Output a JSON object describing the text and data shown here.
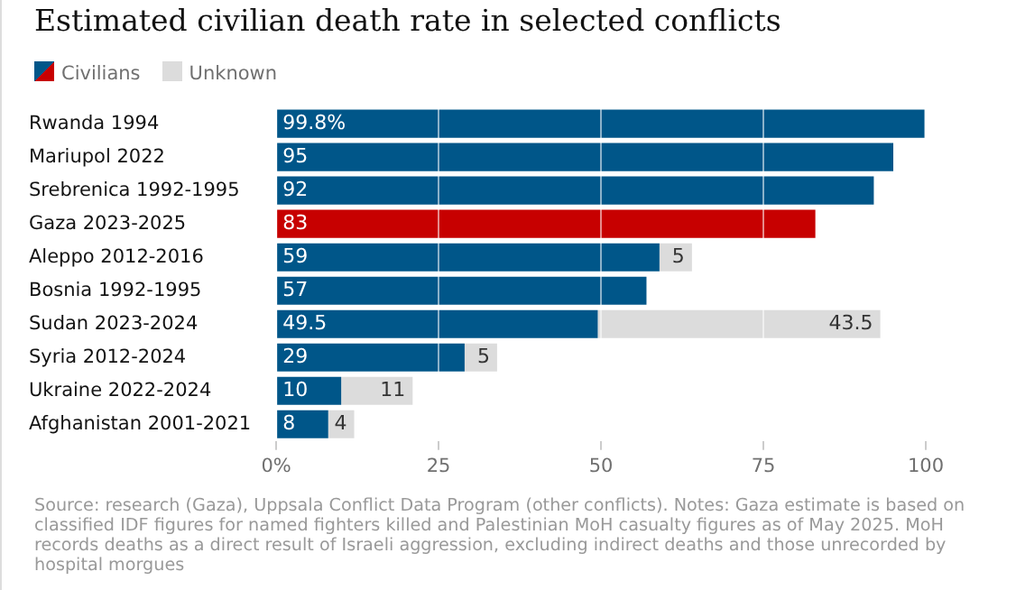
{
  "chart_data": {
    "type": "bar",
    "orientation": "horizontal",
    "stacked": true,
    "title": "Estimated civilian death rate in selected conflicts",
    "categories": [
      "Rwanda 1994",
      "Mariupol 2022",
      "Srebrenica 1992-1995",
      "Gaza 2023-2025",
      "Aleppo 2012-2016",
      "Bosnia 1992-1995",
      "Sudan 2023-2024",
      "Syria 2012-2024",
      "Ukraine 2022-2024",
      "Afghanistan 2001-2021"
    ],
    "series": [
      {
        "name": "Civilians",
        "color": "#005689",
        "colors": [
          "#005689",
          "#005689",
          "#005689",
          "#c70000",
          "#005689",
          "#005689",
          "#005689",
          "#005689",
          "#005689",
          "#005689"
        ],
        "values": [
          99.8,
          95,
          92,
          83,
          59,
          57,
          49.5,
          29,
          10,
          8
        ],
        "value_labels": [
          "99.8%",
          "95",
          "92",
          "83",
          "59",
          "57",
          "49.5",
          "29",
          "10",
          "8"
        ]
      },
      {
        "name": "Unknown",
        "color": "#dcdcdc",
        "values": [
          null,
          null,
          null,
          null,
          5,
          null,
          43.5,
          5,
          11,
          4
        ],
        "value_labels": [
          null,
          null,
          null,
          null,
          "5",
          null,
          "43.5",
          "5",
          "11",
          "4"
        ]
      }
    ],
    "xlim": [
      0,
      100
    ],
    "xticks": [
      {
        "value": 0,
        "label": "0%"
      },
      25,
      50,
      75,
      100
    ],
    "grid": "x",
    "legend": "top left",
    "annotations": [
      "Source: research (Gaza), Uppsala Conflict Data Program (other conflicts). Notes: Gaza estimate is based on classified IDF figures for named fighters killed and Palestinian MoH casualty figures as of May 2025. MoH records deaths as a direct result of Israeli aggression, excluding indirect deaths and those unrecorded by hospital morgues"
    ]
  }
}
